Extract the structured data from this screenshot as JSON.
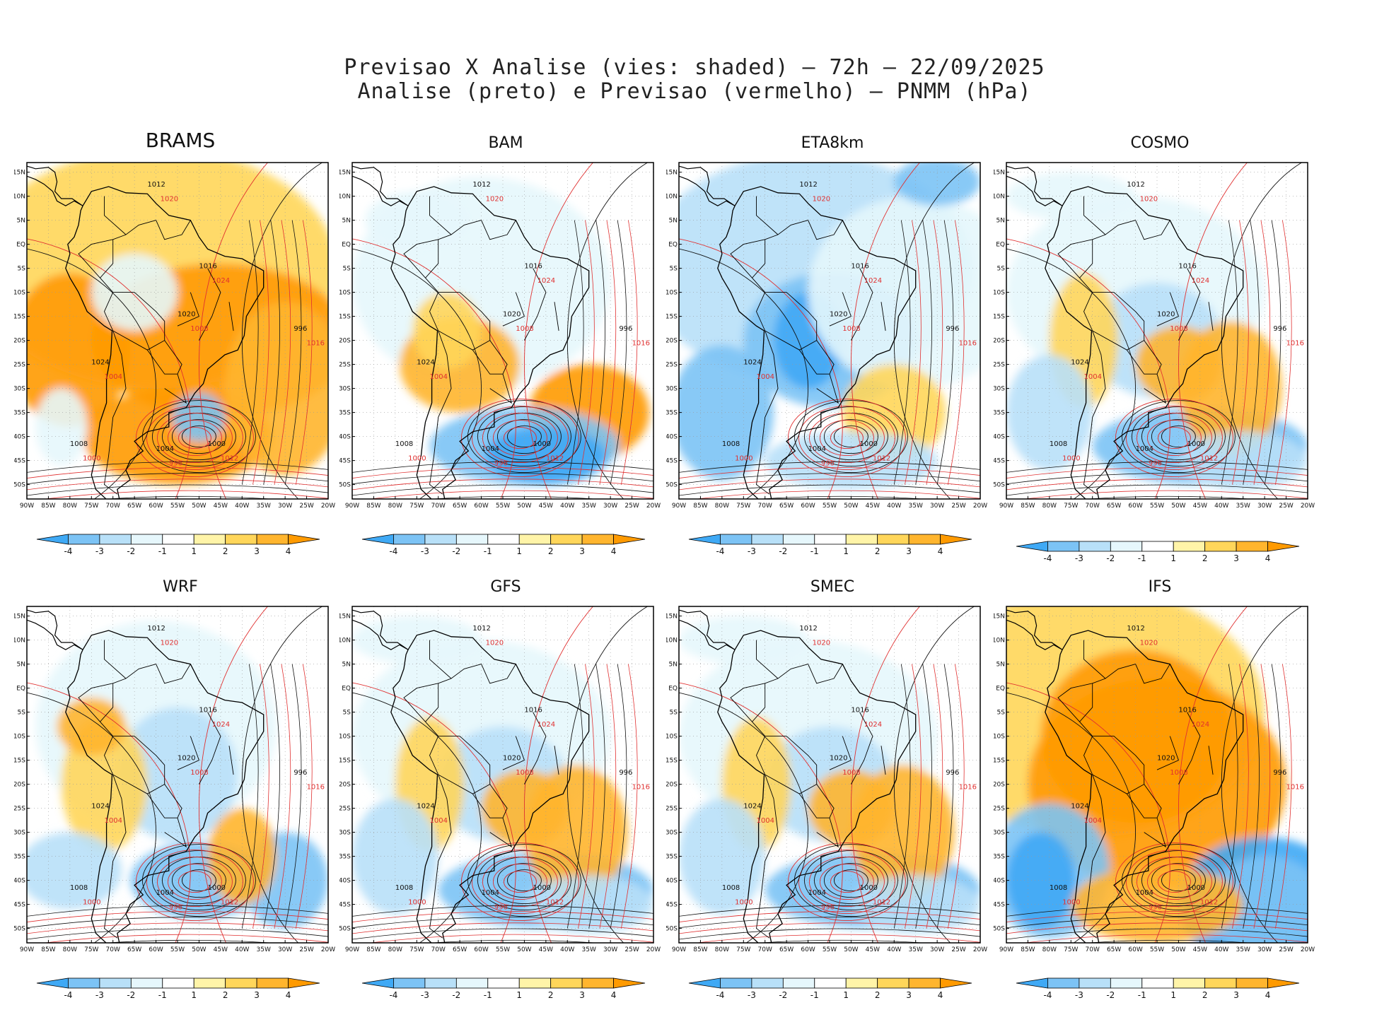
{
  "header": {
    "line1": "Previsao X Analise (vies: shaded) – 72h – 22/09/2025",
    "line2": "Analise (preto) e Previsao (vermelho) – PNMM (hPa)"
  },
  "panels": [
    {
      "name": "BRAMS",
      "bias": "warm"
    },
    {
      "name": "BAM",
      "bias": "mixed"
    },
    {
      "name": "ETA8km",
      "bias": "cold"
    },
    {
      "name": "COSMO",
      "bias": "mixed"
    },
    {
      "name": "WRF",
      "bias": "mixed"
    },
    {
      "name": "GFS",
      "bias": "mixed"
    },
    {
      "name": "SMEC",
      "bias": "mixed"
    },
    {
      "name": "IFS",
      "bias": "warm"
    }
  ],
  "lat_labels": [
    "15N",
    "10N",
    "5N",
    "EQ",
    "5S",
    "10S",
    "15S",
    "20S",
    "25S",
    "30S",
    "35S",
    "40S",
    "45S",
    "50S"
  ],
  "lon_labels": [
    "90W",
    "85W",
    "80W",
    "75W",
    "70W",
    "65W",
    "60W",
    "55W",
    "50W",
    "45W",
    "40W",
    "35W",
    "30W",
    "25W",
    "20W"
  ],
  "colorbar": {
    "labels": [
      "-4",
      "-3",
      "-2",
      "-1",
      "1",
      "2",
      "3",
      "4"
    ],
    "colors": [
      "#3fa9f5",
      "#7cc3f5",
      "#b8e0f8",
      "#e6f7fc",
      "#ffffff",
      "#fff4a8",
      "#ffd65a",
      "#ffb52e",
      "#ff9a00"
    ]
  },
  "isobar_labels": {
    "analysis": [
      "1012",
      "1016",
      "1020",
      "1024",
      "1008",
      "1004",
      "1000",
      "996"
    ],
    "forecast": [
      "1012",
      "1016",
      "1020",
      "1024",
      "1008",
      "1004",
      "1000",
      "996"
    ]
  }
}
